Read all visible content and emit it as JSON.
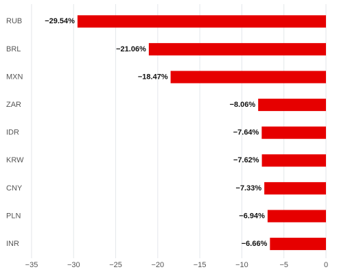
{
  "chart_data": {
    "type": "bar",
    "orientation": "horizontal",
    "categories": [
      "RUB",
      "BRL",
      "MXN",
      "ZAR",
      "IDR",
      "KRW",
      "CNY",
      "PLN",
      "INR"
    ],
    "values": [
      -29.54,
      -21.06,
      -18.47,
      -8.06,
      -7.64,
      -7.62,
      -7.33,
      -6.94,
      -6.66
    ],
    "data_labels": [
      "−29.54%",
      "−21.06%",
      "−18.47%",
      "−8.06%",
      "−7.64%",
      "−7.62%",
      "−7.33%",
      "−6.94%",
      "−6.66%"
    ],
    "x_ticks": [
      -35,
      -30,
      -25,
      -20,
      -15,
      -10,
      -5,
      0
    ],
    "x_tick_labels": [
      "−35",
      "−30",
      "−25",
      "−20",
      "−15",
      "−10",
      "−5",
      "0"
    ],
    "xlim": [
      -35,
      0
    ],
    "title": "",
    "xlabel": "",
    "ylabel": "",
    "grid": "vertical",
    "legend": "none",
    "bar_color": "#e60000"
  }
}
